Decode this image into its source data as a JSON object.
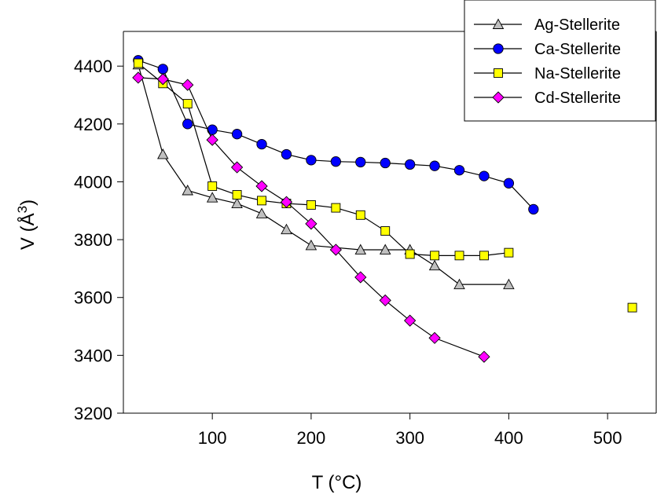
{
  "chart_data": {
    "type": "line",
    "xlabel": "T (°C)",
    "ylabel": "V (Å3)",
    "xlim": [
      10,
      550
    ],
    "ylim": [
      3200,
      4520
    ],
    "xticks": [
      100,
      200,
      300,
      400,
      500
    ],
    "yticks": [
      3200,
      3400,
      3600,
      3800,
      4000,
      4200,
      4400
    ],
    "legend_position": "top-right",
    "series": [
      {
        "name": "Ag-Stellerite",
        "marker": "triangle",
        "color": "#c0c0c0",
        "x": [
          25,
          50,
          75,
          100,
          125,
          150,
          175,
          200,
          250,
          275,
          300,
          325,
          350,
          400
        ],
        "y": [
          4405,
          4095,
          3970,
          3945,
          3925,
          3890,
          3835,
          3780,
          3765,
          3765,
          3765,
          3710,
          3645,
          3645
        ]
      },
      {
        "name": "Ca-Stellerite",
        "marker": "circle",
        "color": "#0000ff",
        "x": [
          25,
          50,
          75,
          100,
          125,
          150,
          175,
          200,
          225,
          250,
          275,
          300,
          325,
          350,
          375,
          400,
          425
        ],
        "y": [
          4420,
          4390,
          4200,
          4180,
          4165,
          4130,
          4095,
          4075,
          4070,
          4068,
          4065,
          4060,
          4055,
          4040,
          4020,
          3995,
          3905
        ]
      },
      {
        "name": "Na-Stellerite",
        "marker": "square",
        "color": "#ffff00",
        "x": [
          25,
          50,
          75,
          100,
          125,
          150,
          175,
          200,
          225,
          250,
          275,
          300,
          325,
          350,
          375,
          400,
          525
        ],
        "y": [
          4410,
          4340,
          4270,
          3985,
          3955,
          3935,
          3925,
          3920,
          3910,
          3885,
          3830,
          3750,
          3745,
          3745,
          3745,
          3755,
          3565
        ],
        "connected_points": 16
      },
      {
        "name": "Cd-Stellerite",
        "marker": "diamond",
        "color": "#ff00ff",
        "x": [
          25,
          50,
          75,
          100,
          125,
          150,
          175,
          200,
          225,
          250,
          275,
          300,
          325,
          375
        ],
        "y": [
          4360,
          4355,
          4335,
          4145,
          4050,
          3985,
          3930,
          3855,
          3765,
          3670,
          3590,
          3520,
          3460,
          3395
        ]
      }
    ]
  }
}
